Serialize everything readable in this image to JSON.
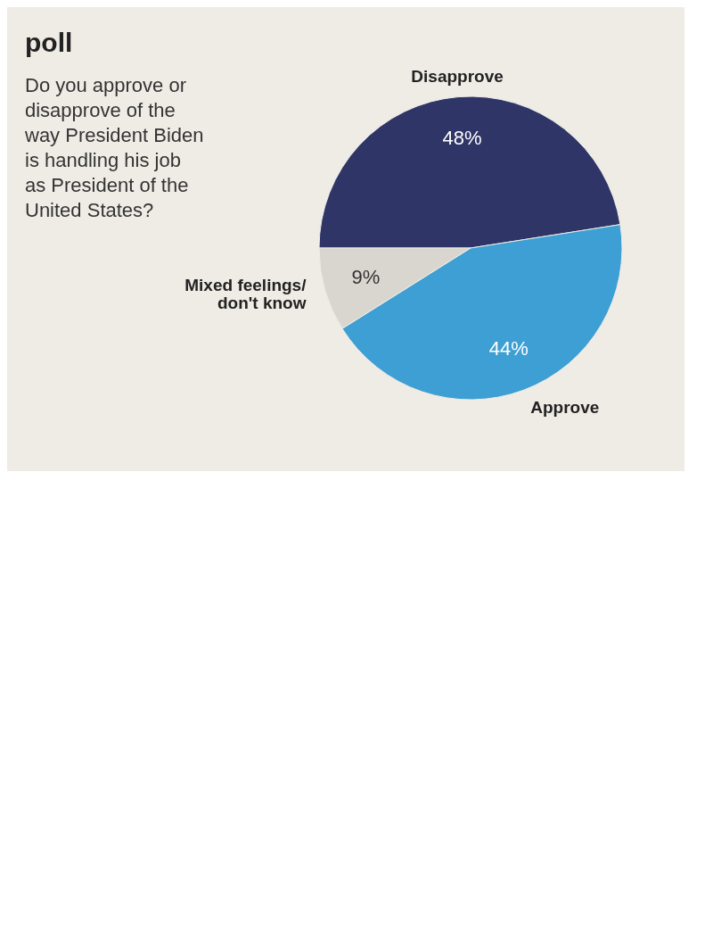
{
  "chart_data": {
    "type": "pie",
    "title": "poll",
    "subtitle": "Do you approve or disapprove of the way President Biden is handling his job as President of the United States?",
    "categories": [
      "Disapprove",
      "Approve",
      "Mixed feelings/ don't know"
    ],
    "values": [
      48,
      44,
      9
    ],
    "colors": [
      "#2f3566",
      "#3d9fd3",
      "#d9d6cf"
    ],
    "value_labels": [
      "48%",
      "44%",
      "9%"
    ]
  }
}
